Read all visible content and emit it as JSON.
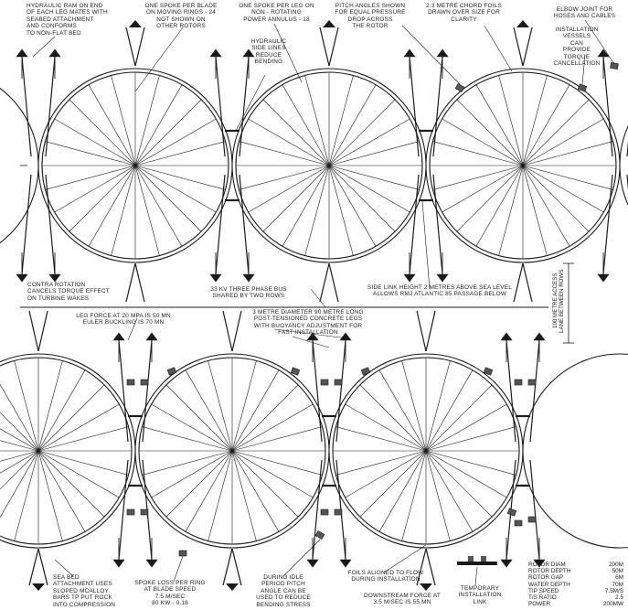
{
  "annotations": {
    "hydraulic_ram": "HYDRAULIC RAM ON END\nOF EACH LEG MATES WITH\nSEABED ATTACHMENT\nAND CONFORMS\nTO NON-FLAT BED",
    "one_spoke_per_blade": "ONE SPOKE PER BLADE\nON MOVING RINGS - 24\nNOT SHOWN ON\nOTHER ROTORS",
    "one_spoke_per_leg": "ONE SPOKE PER LEG ON\nNON - ROTATING\nPOWER ANNULUS - 18",
    "pitch_angles": "PITCH ANGLES SHOWN\nFOR EQUAL PRESSURE\nDROP ACROSS\nTHE ROTOR",
    "chord_foils": "2.3 METRE CHORD FOILS\nDRAWN OVER SIZE FOR\nCLARITY",
    "elbow_joint": "ELBOW JOINT FOR\nHOSES AND CABLES",
    "installation_vessels": "INSTALLATION\nVESSELS\nCAN\nPROVIDE\nTORQUE\nCANCELLATION",
    "hydraulic_side_lines": "HYDRAULIC\nSIDE LINES\nREDUCE\nBENDING",
    "contra_rotation": "CONTRA ROTATION\nCANCELS TORQUE EFFECT\nON TURBINE WAKES",
    "three_phase_bus": "33 KV THREE PHASE BUS\nSHARED BY TWO ROWS",
    "side_link_height": "SIDE LINK HEIGHT 2 METRES ABOVE SEA LEVEL\nALLOWS RMJ ATLANTIC 85 PASSAGE BELOW",
    "access_lane": "100 METRE ACCESS\nLANE BETWEEN ROWS",
    "leg_force": "LEG FORCE AT 20 MPA IS 50 MN\nEULER BUCKLING IS 70 MN",
    "concrete_legs": "3 METRE DIAMETER 90 METRE LONG\nPOST-TENSIONED CONCRETE LEGS\nWITH BUOYANCY ADJUSTMENT FOR\nFAST INSTALLATION",
    "sea_bed_attachment": "SEA BED\nATTACHMENT USES\nSLOPED McALLOY\nBARS TP PUT ROCK\nINTO COMPRESSION",
    "spoke_loss": "SPOKE LOSS PER RING\nAT BLADE SPEED\n7.5 M/SEC\n80 KW - 0.16",
    "idle_period": "DURING IDLE\nPERIOD PITCH\nANGLE CAN BE\nUSED TO REDUCE\nBENDING STRESS",
    "foils_aligned": "FOILS ALIGNED TO FLOW\nDURING INSTALLATION",
    "downstream_force": "DOWNSTREAM FORCE AT\n3.5 M/SEC IS 55 MN",
    "temporary_link": "TEMPORARY\nINSTALLATION\nLINK"
  },
  "specs": [
    {
      "label": "ROTOR DIAM",
      "value": "200M"
    },
    {
      "label": "ROTOR DEPTH",
      "value": "50M"
    },
    {
      "label": "ROTOR GAP",
      "value": "6M"
    },
    {
      "label": "WATER DEPTH",
      "value": "70M"
    },
    {
      "label": "TIP SPEED",
      "value": "7.5M/S"
    },
    {
      "label": "T/S RATIO",
      "value": "2.5"
    },
    {
      "label": "POWER",
      "value": "200MW"
    }
  ],
  "colors": {
    "ink": "#1a1a1a",
    "paper": "#ffffff"
  }
}
